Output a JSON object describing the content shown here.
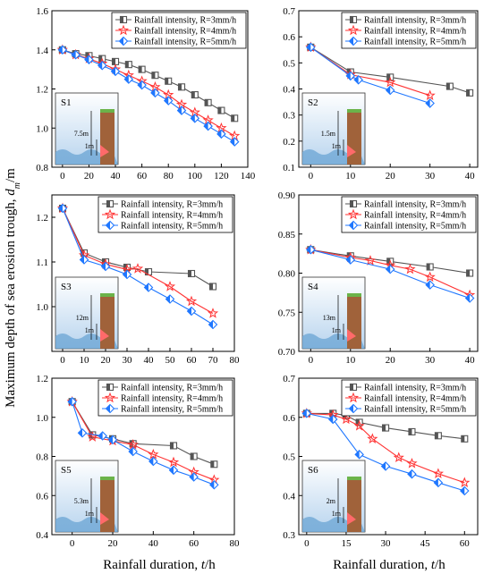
{
  "figure": {
    "ylabel_main": "Maximum depth of sea erosion trough, ",
    "ylabel_var": "d",
    "ylabel_sub": "m",
    "ylabel_unit": "/m",
    "xlabel_main": "Rainfall duration, ",
    "xlabel_var": "t",
    "xlabel_unit": "/h"
  },
  "legend": [
    {
      "label": "Rainfall intensity, R=3mm/h",
      "color": "#555555",
      "marker": "square"
    },
    {
      "label": "Rainfall intensity, R=4mm/h",
      "color": "#ff3333",
      "marker": "star"
    },
    {
      "label": "Rainfall intensity, R=5mm/h",
      "color": "#1f77ff",
      "marker": "diamond"
    }
  ],
  "chart_data": [
    {
      "type": "line",
      "panel": "S1",
      "inset_height": "7.5m",
      "inset_offset": "1m",
      "xlim": [
        -8,
        140
      ],
      "ylim": [
        0.8,
        1.6
      ],
      "xticks": [
        0,
        20,
        40,
        60,
        80,
        100,
        120,
        140
      ],
      "yticks": [
        0.8,
        1.0,
        1.2,
        1.4,
        1.6
      ],
      "series": [
        {
          "name": "Rainfall intensity, R=3mm/h",
          "x": [
            0,
            10,
            20,
            30,
            40,
            50,
            60,
            70,
            80,
            90,
            100,
            110,
            120,
            130
          ],
          "y": [
            1.4,
            1.38,
            1.37,
            1.355,
            1.34,
            1.325,
            1.3,
            1.27,
            1.24,
            1.21,
            1.17,
            1.13,
            1.09,
            1.05
          ]
        },
        {
          "name": "Rainfall intensity, R=4mm/h",
          "x": [
            0,
            10,
            20,
            30,
            40,
            50,
            60,
            70,
            80,
            90,
            100,
            110,
            120,
            130
          ],
          "y": [
            1.4,
            1.375,
            1.355,
            1.33,
            1.3,
            1.27,
            1.24,
            1.21,
            1.17,
            1.12,
            1.08,
            1.04,
            1.0,
            0.96
          ]
        },
        {
          "name": "Rainfall intensity, R=5mm/h",
          "x": [
            0,
            10,
            20,
            30,
            40,
            50,
            60,
            70,
            80,
            90,
            100,
            110,
            120,
            130
          ],
          "y": [
            1.4,
            1.375,
            1.35,
            1.32,
            1.29,
            1.25,
            1.22,
            1.18,
            1.14,
            1.09,
            1.05,
            1.01,
            0.97,
            0.93
          ]
        }
      ]
    },
    {
      "type": "line",
      "panel": "S2",
      "inset_height": "1.5m",
      "inset_offset": "1m",
      "xlim": [
        -3,
        42
      ],
      "ylim": [
        0.1,
        0.7
      ],
      "xticks": [
        0,
        10,
        20,
        30,
        40
      ],
      "yticks": [
        0.1,
        0.2,
        0.3,
        0.4,
        0.5,
        0.6,
        0.7
      ],
      "series": [
        {
          "name": "Rainfall intensity, R=3mm/h",
          "x": [
            0,
            10,
            20,
            35,
            40
          ],
          "y": [
            0.56,
            0.465,
            0.445,
            0.41,
            0.385
          ]
        },
        {
          "name": "Rainfall intensity, R=4mm/h",
          "x": [
            0,
            10,
            20,
            30
          ],
          "y": [
            0.56,
            0.455,
            0.425,
            0.375
          ]
        },
        {
          "name": "Rainfall intensity, R=5mm/h",
          "x": [
            0,
            10,
            12,
            20,
            30
          ],
          "y": [
            0.56,
            0.45,
            0.435,
            0.395,
            0.345
          ]
        }
      ]
    },
    {
      "type": "line",
      "panel": "S3",
      "inset_height": "12m",
      "inset_offset": "1m",
      "xlim": [
        -5,
        80
      ],
      "ylim": [
        0.9,
        1.25
      ],
      "xticks": [
        0,
        10,
        20,
        30,
        40,
        50,
        60,
        70,
        80
      ],
      "yticks": [
        1.0,
        1.1,
        1.2
      ],
      "series": [
        {
          "name": "Rainfall intensity, R=3mm/h",
          "x": [
            0,
            10,
            20,
            30,
            40,
            60,
            70
          ],
          "y": [
            1.22,
            1.12,
            1.1,
            1.088,
            1.078,
            1.074,
            1.045
          ]
        },
        {
          "name": "Rainfall intensity, R=4mm/h",
          "x": [
            0,
            10,
            20,
            30,
            35,
            50,
            60,
            70
          ],
          "y": [
            1.22,
            1.115,
            1.095,
            1.083,
            1.085,
            1.045,
            1.012,
            0.985
          ]
        },
        {
          "name": "Rainfall intensity, R=5mm/h",
          "x": [
            0,
            10,
            20,
            30,
            40,
            50,
            60,
            70
          ],
          "y": [
            1.22,
            1.105,
            1.09,
            1.072,
            1.043,
            1.017,
            0.99,
            0.96
          ]
        }
      ]
    },
    {
      "type": "line",
      "panel": "S4",
      "inset_height": "13m",
      "inset_offset": "1m",
      "xlim": [
        -3,
        42
      ],
      "ylim": [
        0.7,
        0.9
      ],
      "xticks": [
        0,
        10,
        20,
        30,
        40
      ],
      "yticks": [
        0.7,
        0.75,
        0.8,
        0.85,
        0.9
      ],
      "series": [
        {
          "name": "Rainfall intensity, R=3mm/h",
          "x": [
            0,
            10,
            20,
            30,
            40
          ],
          "y": [
            0.83,
            0.822,
            0.815,
            0.808,
            0.8
          ]
        },
        {
          "name": "Rainfall intensity, R=4mm/h",
          "x": [
            0,
            10,
            15,
            20,
            25,
            30,
            40
          ],
          "y": [
            0.83,
            0.82,
            0.816,
            0.81,
            0.805,
            0.795,
            0.772
          ]
        },
        {
          "name": "Rainfall intensity, R=5mm/h",
          "x": [
            0,
            10,
            20,
            30,
            40
          ],
          "y": [
            0.83,
            0.817,
            0.805,
            0.785,
            0.768
          ]
        }
      ]
    },
    {
      "type": "line",
      "panel": "S5",
      "inset_height": "5.3m",
      "inset_offset": "1m",
      "xlim": [
        -10,
        80
      ],
      "ylim": [
        0.4,
        1.2
      ],
      "xticks": [
        0,
        20,
        40,
        60,
        80
      ],
      "yticks": [
        0.4,
        0.6,
        0.8,
        1.0,
        1.2
      ],
      "series": [
        {
          "name": "Rainfall intensity, R=3mm/h",
          "x": [
            0,
            10,
            20,
            30,
            50,
            60,
            70
          ],
          "y": [
            1.08,
            0.91,
            0.89,
            0.865,
            0.855,
            0.8,
            0.76
          ]
        },
        {
          "name": "Rainfall intensity, R=4mm/h",
          "x": [
            0,
            10,
            20,
            30,
            40,
            50,
            60,
            70
          ],
          "y": [
            1.08,
            0.9,
            0.88,
            0.86,
            0.81,
            0.77,
            0.72,
            0.68
          ]
        },
        {
          "name": "Rainfall intensity, R=5mm/h",
          "x": [
            0,
            5,
            15,
            20,
            30,
            40,
            50,
            60,
            70
          ],
          "y": [
            1.08,
            0.92,
            0.905,
            0.885,
            0.825,
            0.775,
            0.73,
            0.695,
            0.655
          ]
        }
      ]
    },
    {
      "type": "line",
      "panel": "S6",
      "inset_height": "2m",
      "inset_offset": "1m",
      "xlim": [
        -3,
        65
      ],
      "ylim": [
        0.3,
        0.7
      ],
      "xticks": [
        0,
        15,
        30,
        45,
        60
      ],
      "yticks": [
        0.3,
        0.4,
        0.5,
        0.6,
        0.7
      ],
      "series": [
        {
          "name": "Rainfall intensity, R=3mm/h",
          "x": [
            0,
            10,
            15,
            20,
            30,
            40,
            50,
            60
          ],
          "y": [
            0.61,
            0.61,
            0.605,
            0.587,
            0.573,
            0.563,
            0.553,
            0.545
          ]
        },
        {
          "name": "Rainfall intensity, R=4mm/h",
          "x": [
            0,
            10,
            15,
            20,
            25,
            35,
            40,
            50,
            60
          ],
          "y": [
            0.61,
            0.606,
            0.595,
            0.578,
            0.545,
            0.497,
            0.482,
            0.456,
            0.433
          ]
        },
        {
          "name": "Rainfall intensity, R=5mm/h",
          "x": [
            0,
            10,
            20,
            30,
            40,
            50,
            60
          ],
          "y": [
            0.61,
            0.595,
            0.505,
            0.475,
            0.455,
            0.433,
            0.412
          ]
        }
      ]
    }
  ]
}
